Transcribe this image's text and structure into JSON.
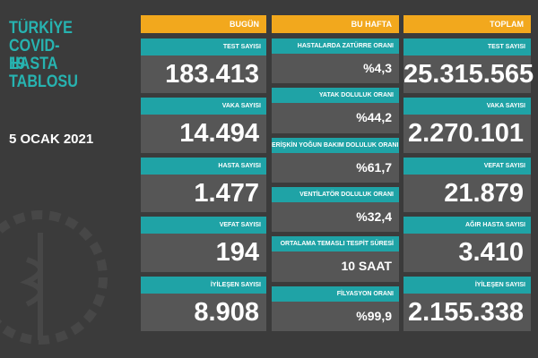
{
  "title": {
    "lines": [
      "TÜRKİYE",
      "COVID-19",
      "HASTA",
      "TABLOSU"
    ],
    "date": "5 OCAK 2021"
  },
  "columns": [
    {
      "header": "BUGÜN",
      "items": [
        {
          "label": "TEST SAYISI",
          "value": "183.413"
        },
        {
          "label": "VAKA SAYISI",
          "value": "14.494"
        },
        {
          "label": "HASTA SAYISI",
          "value": "1.477"
        },
        {
          "label": "VEFAT SAYISI",
          "value": "194"
        },
        {
          "label": "İYİLEŞEN SAYISI",
          "value": "8.908"
        }
      ]
    },
    {
      "header": "BU HAFTA",
      "items": [
        {
          "label": "HASTALARDA ZATÜRRE ORANI",
          "value": "%4,3"
        },
        {
          "label": "YATAK DOLULUK ORANI",
          "value": "%44,2"
        },
        {
          "label": "ERİŞKİN YOĞUN BAKIM DOLULUK ORANI",
          "value": "%61,7"
        },
        {
          "label": "VENTİLATÖR DOLULUK ORANI",
          "value": "%32,4"
        },
        {
          "label": "ORTALAMA TEMASLI TESPİT SÜRESİ",
          "value": "10 SAAT"
        },
        {
          "label": "FİLYASYON ORANI",
          "value": "%99,9"
        }
      ]
    },
    {
      "header": "TOPLAM",
      "items": [
        {
          "label": "TEST SAYISI",
          "value": "25.315.565"
        },
        {
          "label": "VAKA SAYISI",
          "value": "2.270.101"
        },
        {
          "label": "VEFAT SAYISI",
          "value": "21.879"
        },
        {
          "label": "AĞIR HASTA SAYISI",
          "value": "3.410"
        },
        {
          "label": "İYİLEŞEN SAYISI",
          "value": "2.155.338"
        }
      ]
    }
  ]
}
